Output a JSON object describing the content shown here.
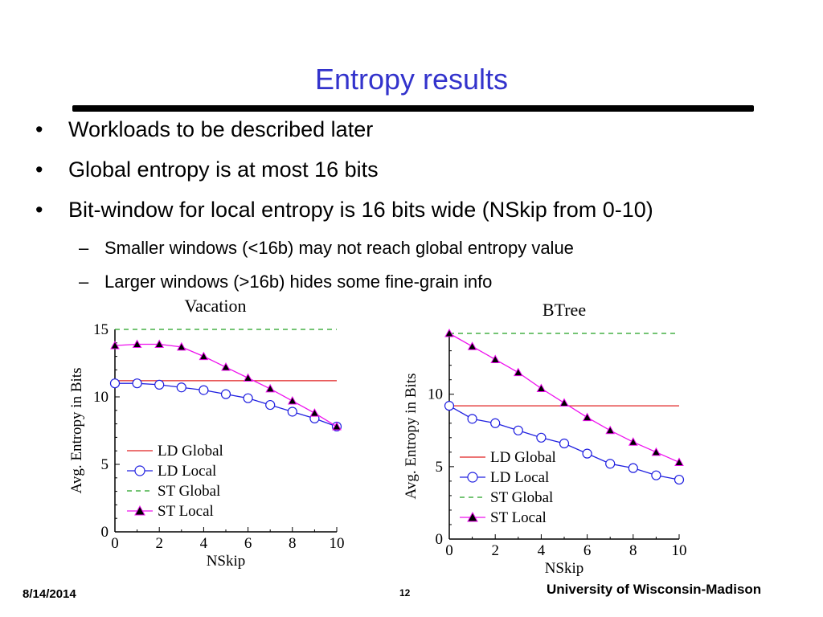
{
  "slide": {
    "title": "Entropy results",
    "bullets": [
      "Workloads to be described later",
      "Global entropy is at most 16 bits",
      "Bit-window for local entropy is 16 bits wide (NSkip from 0-10)"
    ],
    "sub_bullets": [
      "Smaller windows (<16b) may not reach global entropy value",
      "Larger windows (>16b) hides some fine-grain info"
    ],
    "bullet_glyph": "•",
    "dash_glyph": "–"
  },
  "footer": {
    "date": "8/14/2014",
    "page": "12",
    "university": "University of Wisconsin-Madison"
  },
  "colors": {
    "title": "#3333cc",
    "ld_global": "#e02020",
    "ld_local": "#2020e0",
    "st_global": "#20a020",
    "st_local": "#ee10ee"
  },
  "chart_data": [
    {
      "type": "line",
      "title": "Vacation",
      "xlabel": "NSkip",
      "ylabel": "Avg. Entropy in Bits",
      "xlim": [
        0,
        10
      ],
      "ylim": [
        0,
        15
      ],
      "xticks": [
        0,
        2,
        4,
        6,
        8,
        10
      ],
      "yticks": [
        0,
        5,
        10,
        15
      ],
      "legend_position": "bottom-left",
      "x": [
        0,
        1,
        2,
        3,
        4,
        5,
        6,
        7,
        8,
        9,
        10
      ],
      "series": [
        {
          "name": "LD Global",
          "values": [
            11.2,
            11.2,
            11.2,
            11.2,
            11.2,
            11.2,
            11.2,
            11.2,
            11.2,
            11.2,
            11.2
          ]
        },
        {
          "name": "LD Local",
          "values": [
            11.0,
            11.0,
            10.9,
            10.7,
            10.5,
            10.2,
            9.9,
            9.4,
            8.9,
            8.4,
            7.8
          ]
        },
        {
          "name": "ST Global",
          "values": [
            15.0,
            15.0,
            15.0,
            15.0,
            15.0,
            15.0,
            15.0,
            15.0,
            15.0,
            15.0,
            15.0
          ]
        },
        {
          "name": "ST Local",
          "values": [
            13.8,
            13.9,
            13.9,
            13.7,
            13.0,
            12.2,
            11.4,
            10.6,
            9.7,
            8.8,
            7.8
          ]
        }
      ]
    },
    {
      "type": "line",
      "title": "BTree",
      "xlabel": "NSkip",
      "ylabel": "Avg. Entropy in Bits",
      "xlim": [
        0,
        10
      ],
      "ylim": [
        0,
        14.2
      ],
      "xticks": [
        0,
        2,
        4,
        6,
        8,
        10
      ],
      "yticks": [
        0,
        5,
        10
      ],
      "legend_position": "bottom-left",
      "x": [
        0,
        1,
        2,
        3,
        4,
        5,
        6,
        7,
        8,
        9,
        10
      ],
      "series": [
        {
          "name": "LD Global",
          "values": [
            9.2,
            9.2,
            9.2,
            9.2,
            9.2,
            9.2,
            9.2,
            9.2,
            9.2,
            9.2,
            9.2
          ]
        },
        {
          "name": "LD Local",
          "values": [
            9.2,
            8.3,
            8.0,
            7.5,
            7.0,
            6.6,
            5.9,
            5.2,
            4.9,
            4.4,
            4.1
          ]
        },
        {
          "name": "ST Global",
          "values": [
            14.2,
            14.2,
            14.2,
            14.2,
            14.2,
            14.2,
            14.2,
            14.2,
            14.2,
            14.2,
            14.2
          ]
        },
        {
          "name": "ST Local",
          "values": [
            14.2,
            13.3,
            12.4,
            11.5,
            10.4,
            9.4,
            8.4,
            7.5,
            6.7,
            6.0,
            5.3
          ]
        }
      ]
    }
  ]
}
